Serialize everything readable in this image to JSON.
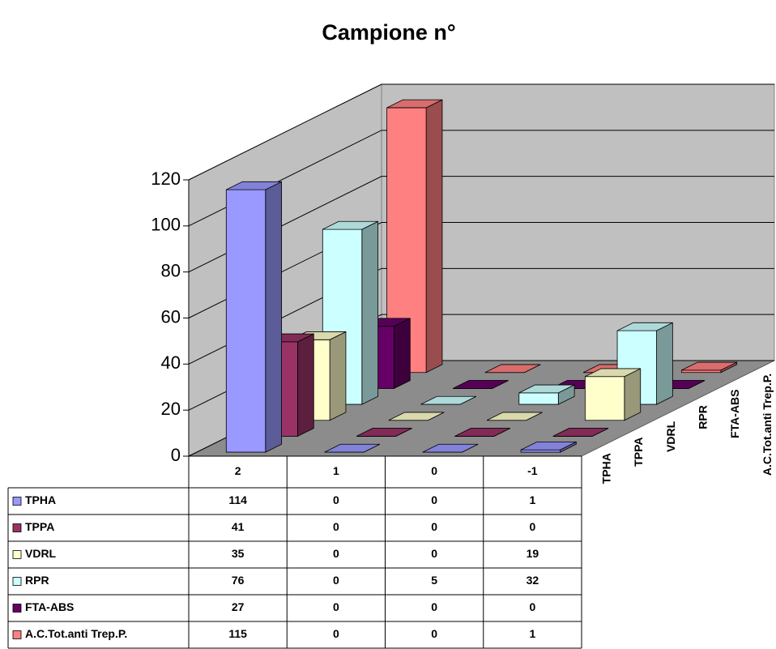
{
  "chart_data": {
    "type": "bar3d",
    "title": "Campione n°",
    "categories": [
      "2",
      "1",
      "0",
      "-1"
    ],
    "series": [
      {
        "name": "TPHA",
        "color": "#9999ff",
        "values": [
          114,
          0,
          0,
          1
        ]
      },
      {
        "name": "TPPA",
        "color": "#993366",
        "values": [
          41,
          0,
          0,
          0
        ]
      },
      {
        "name": "VDRL",
        "color": "#ffffcc",
        "values": [
          35,
          0,
          0,
          19
        ]
      },
      {
        "name": "RPR",
        "color": "#ccffff",
        "values": [
          76,
          0,
          5,
          32
        ]
      },
      {
        "name": "FTA-ABS",
        "color": "#660066",
        "values": [
          27,
          0,
          0,
          0
        ]
      },
      {
        "name": "A.C.Tot.anti Trep.P.",
        "color": "#ff8080",
        "values": [
          115,
          0,
          0,
          1
        ]
      }
    ],
    "ylim": [
      0,
      120
    ],
    "yticks": [
      0,
      20,
      40,
      60,
      80,
      100,
      120
    ],
    "grid": true,
    "data_table": true
  }
}
